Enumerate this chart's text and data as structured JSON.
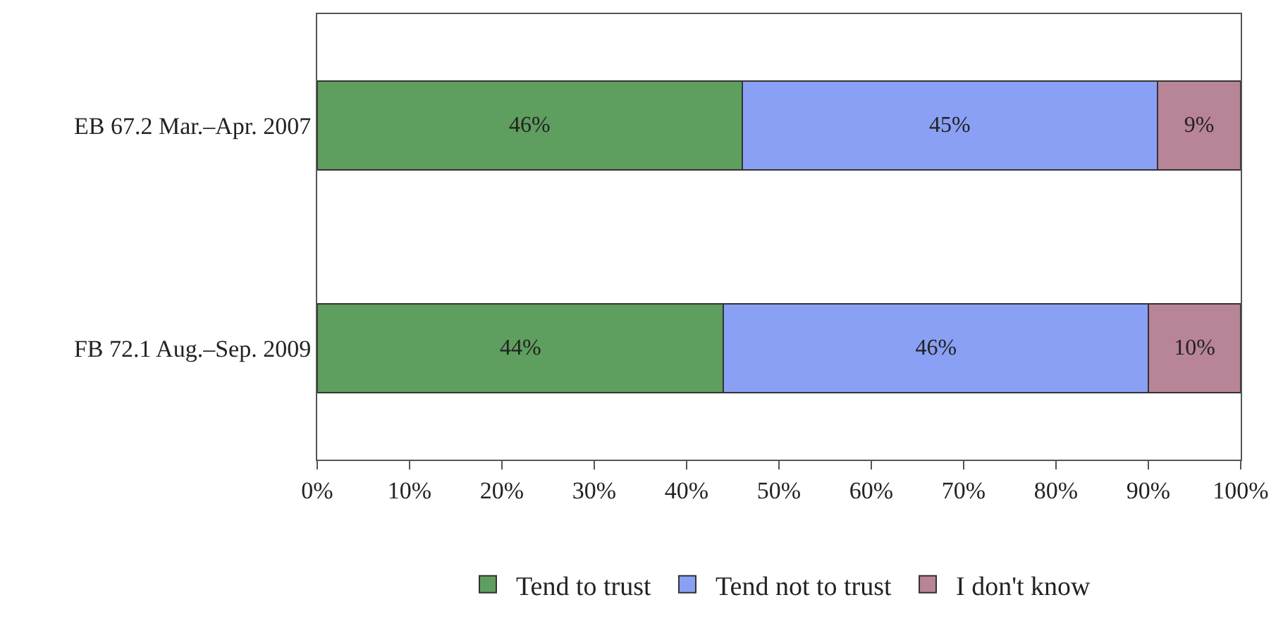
{
  "chart_data": {
    "type": "bar",
    "orientation": "horizontal",
    "stacked": true,
    "categories": [
      "EB 67.2 Mar.–Apr. 2007",
      "FB 72.1 Aug.–Sep. 2009"
    ],
    "series": [
      {
        "name": "Tend to trust",
        "color": "#5e9e5e",
        "values": [
          46,
          44
        ],
        "value_labels": [
          "46%",
          "44%"
        ]
      },
      {
        "name": "Tend not to trust",
        "color": "#8aa0f5",
        "values": [
          45,
          46
        ],
        "value_labels": [
          "45%",
          "46%"
        ]
      },
      {
        "name": "I don't know",
        "color": "#b88498",
        "values": [
          9,
          10
        ],
        "value_labels": [
          "9%",
          "10%"
        ]
      }
    ],
    "xlim": [
      0,
      100
    ],
    "xticks": [
      {
        "value": 0,
        "label": "0%"
      },
      {
        "value": 10,
        "label": "10%"
      },
      {
        "value": 20,
        "label": "20%"
      },
      {
        "value": 30,
        "label": "30%"
      },
      {
        "value": 40,
        "label": "40%"
      },
      {
        "value": 50,
        "label": "50%"
      },
      {
        "value": 60,
        "label": "60%"
      },
      {
        "value": 70,
        "label": "70%"
      },
      {
        "value": 80,
        "label": "80%"
      },
      {
        "value": 90,
        "label": "90%"
      },
      {
        "value": 100,
        "label": "100%"
      }
    ],
    "grid": false,
    "legend": "bottom"
  }
}
